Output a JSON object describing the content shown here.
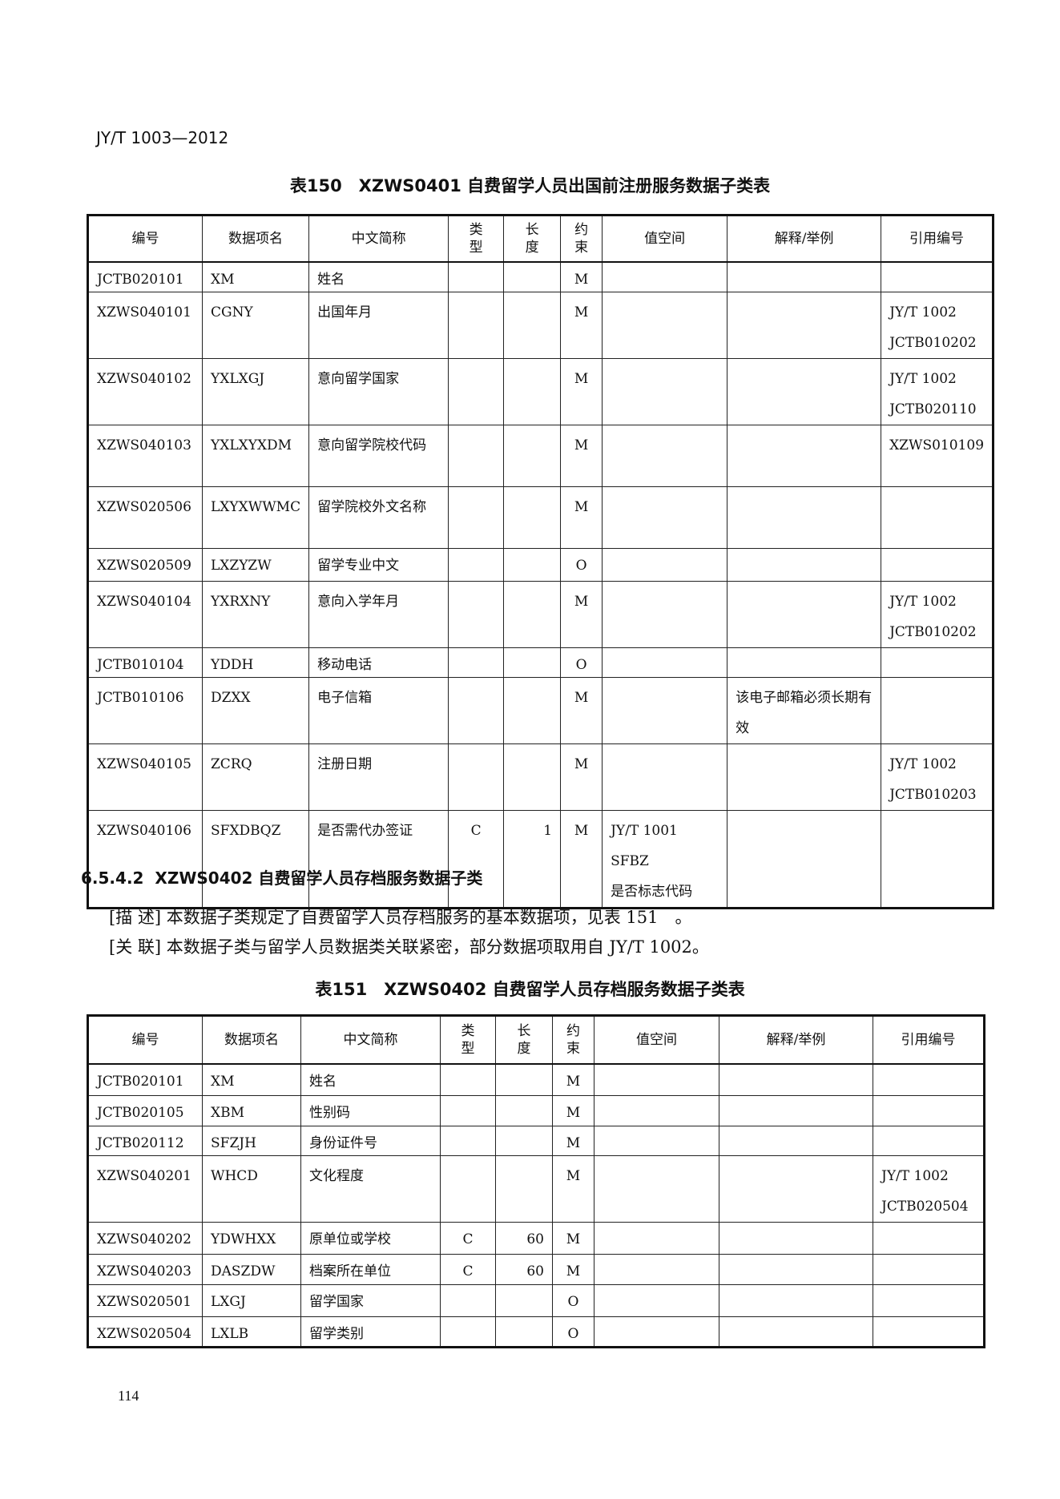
{
  "header": {
    "title": "JY/T 1003—2012"
  },
  "table150": {
    "caption": "表150　XZWS0401 自费留学人员出国前注册服务数据子类表",
    "columns": [
      "编号",
      "数据项名",
      "中文简称",
      "类型",
      "长度",
      "约束",
      "值空间",
      "解释/举例",
      "引用编号"
    ],
    "rows": [
      [
        "JCTB020101",
        "XM",
        "姓名",
        null,
        null,
        "M",
        null,
        null,
        null
      ],
      [
        "XZWS040101",
        "CGNY",
        "出国年月",
        null,
        null,
        "M",
        null,
        null,
        "JY/T 1002\nJCTB010202"
      ],
      [
        "XZWS040102",
        "YXLXGJ",
        "意向留学国家",
        null,
        null,
        "M",
        null,
        null,
        "JY/T 1002\nJCTB020110"
      ],
      [
        "XZWS040103",
        "YXLXYXDM",
        "意向留学院校代码",
        null,
        null,
        "M",
        null,
        null,
        "XZWS010109"
      ],
      [
        "XZWS020506",
        "LXYXWWMC",
        "留学院校外文名称",
        null,
        null,
        "M",
        null,
        null,
        null
      ],
      [
        "XZWS020509",
        "LXZYZW",
        "留学专业中文",
        null,
        null,
        "O",
        null,
        null,
        null
      ],
      [
        "XZWS040104",
        "YXRXNY",
        "意向入学年月",
        null,
        null,
        "M",
        null,
        null,
        "JY/T 1002\nJCTB010202"
      ],
      [
        "JCTB010104",
        "YDDH",
        "移动电话",
        null,
        null,
        "O",
        null,
        null,
        null
      ],
      [
        "JCTB010106",
        "DZXX",
        "电子信箱",
        null,
        null,
        "M",
        null,
        "该电子邮箱必须长期有效",
        null
      ],
      [
        "XZWS040105",
        "ZCRQ",
        "注册日期",
        null,
        null,
        "M",
        null,
        null,
        "JY/T 1002\nJCTB010203"
      ],
      [
        "XZWS040106",
        "SFXDBQZ",
        "是否需代办签证",
        "C",
        1,
        "M",
        "JY/T 1001 SFBZ\n是否标志代码",
        null,
        null
      ]
    ]
  },
  "section": {
    "number": "6.5.4.2",
    "title": "XZWS0402 自费留学人员存档服务数据子类"
  },
  "paragraphs": [
    {
      "label": "[描 述]",
      "text": "本数据子类规定了自费留学人员存档服务的基本数据项，见表 151　。"
    },
    {
      "label": "[关 联]",
      "text": "本数据子类与留学人员数据类关联紧密，部分数据项取用自 JY/T 1002。"
    }
  ],
  "table151": {
    "caption": "表151　XZWS0402 自费留学人员存档服务数据子类表",
    "columns": [
      "编号",
      "数据项名",
      "中文简称",
      "类型",
      "长度",
      "约束",
      "值空间",
      "解释/举例",
      "引用编号"
    ],
    "rows": [
      [
        "JCTB020101",
        "XM",
        "姓名",
        null,
        null,
        "M",
        null,
        null,
        null
      ],
      [
        "JCTB020105",
        "XBM",
        "性别码",
        null,
        null,
        "M",
        null,
        null,
        null
      ],
      [
        "JCTB020112",
        "SFZJH",
        "身份证件号",
        null,
        null,
        "M",
        null,
        null,
        null
      ],
      [
        "XZWS040201",
        "WHCD",
        "文化程度",
        null,
        null,
        "M",
        null,
        null,
        "JY/T 1002\nJCTB020504"
      ],
      [
        "XZWS040202",
        "YDWHXX",
        "原单位或学校",
        "C",
        60,
        "M",
        null,
        null,
        null
      ],
      [
        "XZWS040203",
        "DASZDW",
        "档案所在单位",
        "C",
        60,
        "M",
        null,
        null,
        null
      ],
      [
        "XZWS020501",
        "LXGJ",
        "留学国家",
        null,
        null,
        "O",
        null,
        null,
        null
      ],
      [
        "XZWS020504",
        "LXLB",
        "留学类别",
        null,
        null,
        "O",
        null,
        null,
        null
      ]
    ]
  },
  "footer": {
    "page": "114"
  }
}
